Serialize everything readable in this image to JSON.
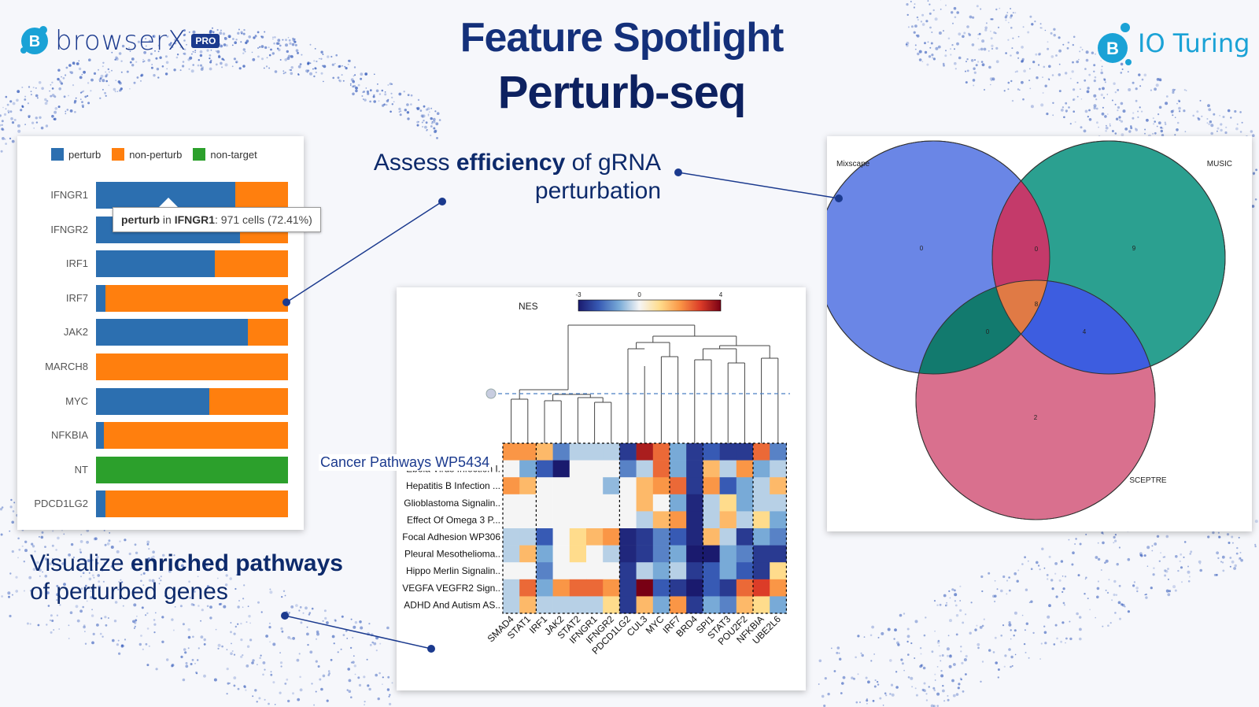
{
  "brand": {
    "left_logo": "browserX",
    "left_badge": "PRO",
    "right_logo": "IO Turing"
  },
  "title": {
    "line1": "Feature Spotlight",
    "line2": "Perturb-seq"
  },
  "captions": {
    "efficiency_pre": "Assess ",
    "efficiency_bold": "efficiency",
    "efficiency_post": " of gRNA",
    "efficiency_line2": "perturbation",
    "pathways_pre": "Visualize ",
    "pathways_bold": "enriched pathways",
    "pathways_line2": "of perturbed genes"
  },
  "colors": {
    "perturb": "#2c6fb0",
    "non_perturb": "#ff7f0e",
    "non_target": "#2ca02c",
    "navy": "#1b3a8e"
  },
  "tooltip": {
    "series": "perturb",
    "gene": "IFNGR1",
    "text": ": 971 cells (72.41%)"
  },
  "chart_data": [
    {
      "type": "bar",
      "orientation": "horizontal-stacked-100",
      "legend": [
        "perturb",
        "non-perturb",
        "non-target"
      ],
      "categories": [
        "IFNGR1",
        "IFNGR2",
        "IRF1",
        "IRF7",
        "JAK2",
        "MARCH8",
        "MYC",
        "NFKBIA",
        "NT",
        "PDCD1LG2"
      ],
      "series": [
        {
          "name": "perturb",
          "values": [
            72.41,
            75,
            62,
            5,
            79,
            0,
            59,
            4,
            0,
            5
          ]
        },
        {
          "name": "non-perturb",
          "values": [
            27.59,
            25,
            38,
            95,
            21,
            100,
            41,
            96,
            0,
            95
          ]
        },
        {
          "name": "non-target",
          "values": [
            0,
            0,
            0,
            0,
            0,
            0,
            0,
            0,
            100,
            0
          ]
        }
      ]
    },
    {
      "type": "heatmap",
      "legend_title": "NES",
      "scale_ticks": [
        "-3",
        "0",
        "4"
      ],
      "rows": [
        "Cancer Pathways WP5434",
        "Ebola Virus Infection I.",
        "Hepatitis B Infection ...",
        "Glioblastoma Signalin..",
        "Effect Of Omega 3 P...",
        "Focal Adhesion WP306",
        "Pleural Mesothelioma..",
        "Hippo Merlin Signalin..",
        "VEGFA VEGFR2 Sign..",
        "ADHD And Autism AS.."
      ],
      "columns": [
        "SMAD4",
        "STAT1",
        "IRF1",
        "JAK2",
        "STAT2",
        "IFNGR1",
        "IFNGR2",
        "PDCD1LG2",
        "CUL3",
        "MYC",
        "IRF7",
        "BRD4",
        "SPI1",
        "STAT3",
        "POU2F2",
        "NFKBIA",
        "UBE2L6"
      ],
      "values": [
        [
          2,
          2,
          1.5,
          -1.5,
          -0.5,
          -0.5,
          -0.5,
          -2.5,
          3.5,
          2.5,
          -1,
          -2.5,
          -2,
          -2.5,
          -2.5,
          2.5,
          -1.5
        ],
        [
          0,
          -1,
          -2,
          -3,
          0,
          0,
          0,
          -1.5,
          -0.5,
          2.5,
          -1,
          -2.5,
          1.5,
          -0.5,
          2,
          -1,
          -0.5
        ],
        [
          2,
          1.5,
          0,
          0,
          0,
          0,
          -0.8,
          0,
          1.5,
          2,
          2.5,
          -2.5,
          2,
          -2,
          -1,
          -0.5,
          1.5
        ],
        [
          0,
          0,
          0,
          0,
          0,
          0,
          0,
          0,
          1.5,
          0,
          -1,
          -2.8,
          -0.5,
          1,
          -1,
          -0.5,
          -0.5
        ],
        [
          0,
          0,
          0,
          0,
          0,
          0,
          0,
          0,
          -0.5,
          1.5,
          2,
          -2.8,
          -0.5,
          1.5,
          -0.5,
          1,
          -1
        ],
        [
          -0.5,
          -0.5,
          -2,
          0,
          1,
          1.5,
          2,
          -2.8,
          -2.5,
          -1.5,
          -2,
          -2.8,
          1.5,
          -0.5,
          -2.5,
          -1,
          -1.5
        ],
        [
          -0.5,
          1.5,
          -1,
          0,
          1,
          0,
          -0.5,
          -2.8,
          -2.5,
          -1.5,
          -1,
          -3,
          -3,
          -1,
          -1.5,
          -2.5,
          -2.5
        ],
        [
          0,
          0,
          -1.5,
          0,
          0,
          0,
          0,
          -2.5,
          -0.5,
          -1,
          -0.5,
          -2.5,
          -2,
          -1,
          -2,
          -2.5,
          1
        ],
        [
          -0.5,
          2.5,
          -1,
          2,
          2.5,
          2.5,
          2,
          -2.5,
          4,
          -2,
          -2.5,
          -3,
          -2,
          -2.5,
          2.5,
          3,
          2
        ],
        [
          -0.5,
          1.5,
          -0.5,
          -0.5,
          -0.5,
          -0.5,
          1,
          -2.5,
          1.5,
          -1,
          2,
          -2.5,
          -1,
          -1.5,
          1.5,
          1,
          -1
        ]
      ]
    },
    {
      "type": "venn",
      "sets": [
        "Mixscape",
        "MUSIC",
        "SCEPTRE"
      ],
      "regions": [
        {
          "sets": [
            "Mixscape"
          ],
          "value": "0"
        },
        {
          "sets": [
            "MUSIC"
          ],
          "value": "9"
        },
        {
          "sets": [
            "SCEPTRE"
          ],
          "value": "2"
        },
        {
          "sets": [
            "Mixscape",
            "MUSIC"
          ],
          "value": "0"
        },
        {
          "sets": [
            "Mixscape",
            "SCEPTRE"
          ],
          "value": "0"
        },
        {
          "sets": [
            "MUSIC",
            "SCEPTRE"
          ],
          "value": "4"
        },
        {
          "sets": [
            "Mixscape",
            "MUSIC",
            "SCEPTRE"
          ],
          "value": "8"
        }
      ]
    }
  ]
}
